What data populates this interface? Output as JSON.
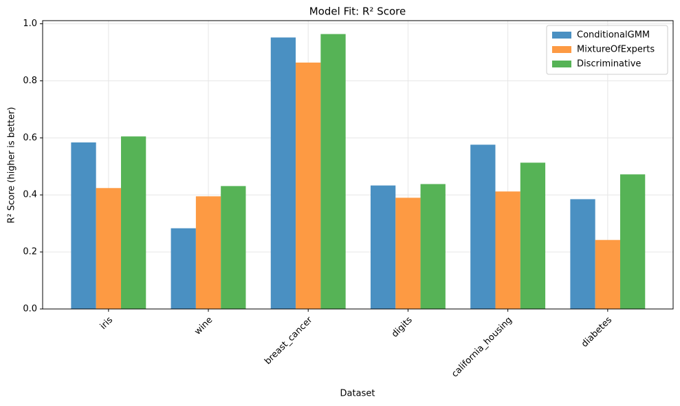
{
  "chart_data": {
    "type": "bar",
    "title": "Model Fit: R² Score",
    "x_label": "Dataset",
    "y_label": "R² Score (higher is better)",
    "categories": [
      "iris",
      "wine",
      "breast_cancer",
      "digits",
      "california_housing",
      "diabetes"
    ],
    "series": [
      {
        "name": "ConditionalGMM",
        "color": "#4a90c2",
        "values": [
          0.584,
          0.283,
          0.952,
          0.433,
          0.576,
          0.385
        ]
      },
      {
        "name": "MixtureOfExperts",
        "color": "#fd9a43",
        "values": [
          0.424,
          0.395,
          0.864,
          0.39,
          0.412,
          0.242
        ]
      },
      {
        "name": "Discriminative",
        "color": "#56b356",
        "values": [
          0.605,
          0.431,
          0.964,
          0.438,
          0.513,
          0.472
        ]
      }
    ],
    "ylim": [
      0,
      1.011
    ],
    "yticks": [
      {
        "value": 0,
        "label": "0.0"
      },
      0.2,
      0.4,
      0.6,
      0.8,
      {
        "value": 1,
        "label": "1.0"
      }
    ],
    "grid": true,
    "legend": "upper-right"
  }
}
